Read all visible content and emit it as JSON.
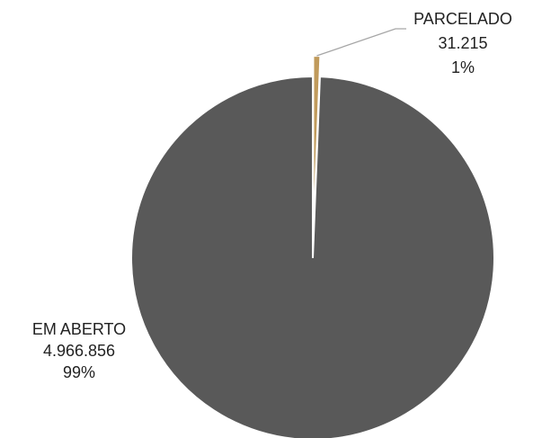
{
  "chart_data": {
    "type": "pie",
    "categories": [
      "EM ABERTO",
      "PARCELADO"
    ],
    "values": [
      4966856,
      31215
    ],
    "value_labels": [
      "4.966.856",
      "31.215"
    ],
    "percentages": [
      99,
      1
    ],
    "percentage_labels": [
      "99%",
      "1%"
    ],
    "colors": [
      "#595959",
      "#c09a5b"
    ]
  }
}
